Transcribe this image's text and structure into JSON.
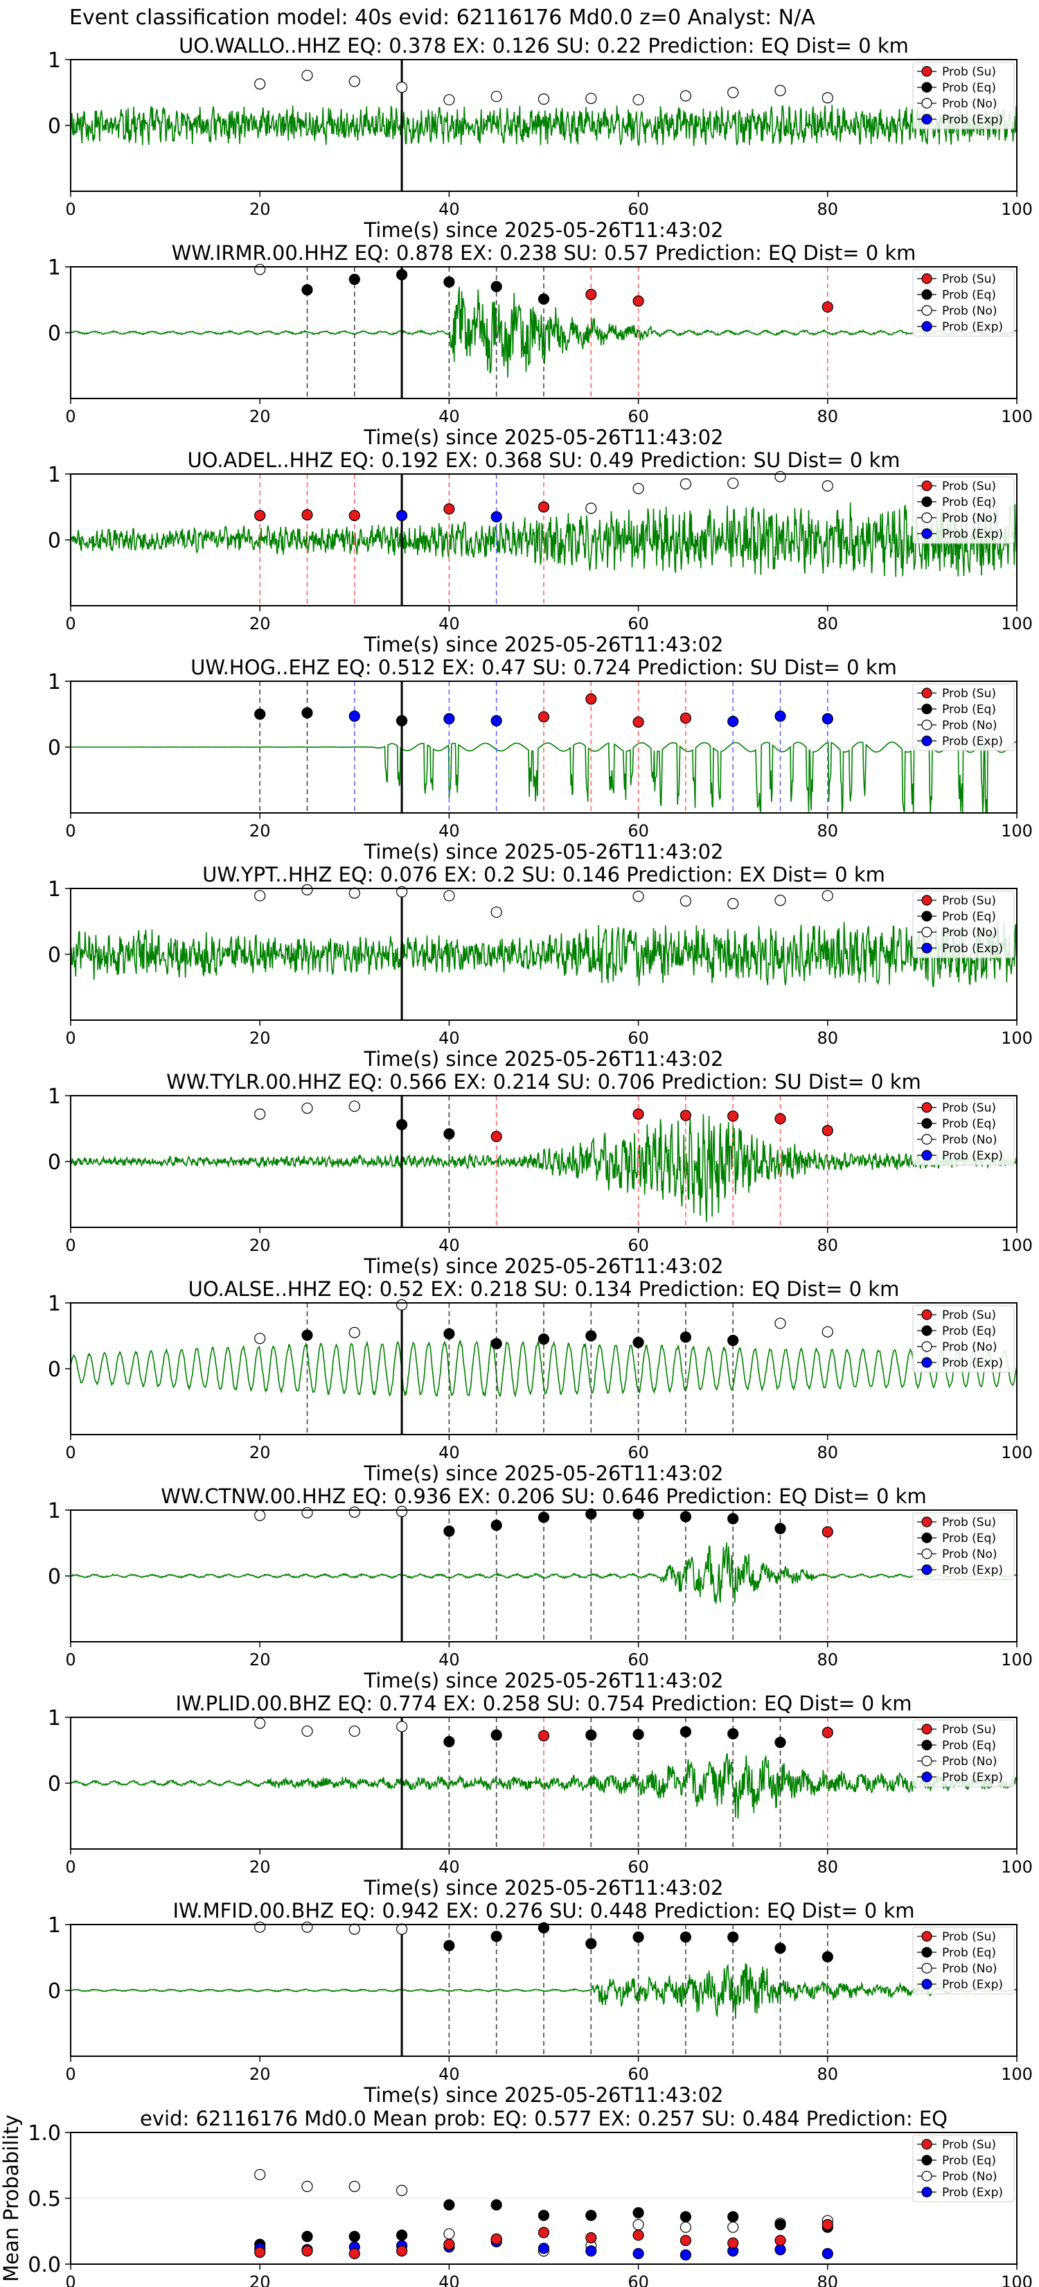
{
  "figure_title": "Event classification model: 40s evid: 62116176 Md0.0 z=0 Analyst: N/A",
  "colors": {
    "waveform": "#008000",
    "su": "#e41a1c",
    "eq": "#000000",
    "no": "#ffffff",
    "exp": "#0000ff",
    "su_line": "#ff6666",
    "eq_line": "#444444",
    "exp_line": "#6666ff",
    "origin_line": "#000000"
  },
  "legend": [
    "Prob (Su)",
    "Prob (Eq)",
    "Prob (No)",
    "Prob (Exp)"
  ],
  "x_ticks": [
    "0",
    "20",
    "40",
    "60",
    "80",
    "100"
  ],
  "x_values": [
    20,
    25,
    30,
    35,
    40,
    45,
    50,
    55,
    60,
    65,
    70,
    75,
    80
  ],
  "chart_data": [
    {
      "type": "scatter",
      "title": "UO.WALLO..HHZ   EQ: 0.378  EX: 0.126  SU: 0.22   Prediction: EQ    Dist= 0 km",
      "xlabel": "Time(s) since 2025-05-26T11:43:02",
      "xlim": [
        0,
        100
      ],
      "ylim": [
        -1,
        1
      ],
      "y_ticks": [
        "1",
        "0"
      ],
      "origin_time": 35,
      "waveform": {
        "style": "dense",
        "amp": 0.35,
        "profile": [
          [
            0,
            0.9
          ],
          [
            100,
            0.9
          ]
        ],
        "seed": 11
      },
      "top_class": [
        "No",
        "No",
        "No",
        "No",
        "No",
        "No",
        "No",
        "No",
        "No",
        "No",
        "No",
        "No",
        "No"
      ],
      "top_prob": [
        0.63,
        0.76,
        0.67,
        0.58,
        0.39,
        0.44,
        0.4,
        0.41,
        0.39,
        0.45,
        0.5,
        0.53,
        0.42
      ]
    },
    {
      "type": "scatter",
      "title": "WW.IRMR.00.HHZ   EQ: 0.878  EX: 0.238  SU: 0.57   Prediction: EQ    Dist= 0 km",
      "xlabel": "Time(s) since 2025-05-26T11:43:02",
      "xlim": [
        0,
        100
      ],
      "ylim": [
        -1,
        1
      ],
      "y_ticks": [
        "1",
        "0"
      ],
      "origin_time": 35,
      "waveform": {
        "style": "smooth",
        "amp": 0.75,
        "profile": [
          [
            0,
            0.06
          ],
          [
            40,
            0.08
          ],
          [
            40.5,
            1
          ],
          [
            48,
            0.9
          ],
          [
            52,
            0.45
          ],
          [
            58,
            0.2
          ],
          [
            65,
            0.1
          ],
          [
            100,
            0.08
          ]
        ],
        "seed": 22
      },
      "top_class": [
        "No",
        "Eq",
        "Eq",
        "Eq",
        "Eq",
        "Eq",
        "Eq",
        "Su",
        "Su",
        null,
        null,
        null,
        "Su"
      ],
      "top_prob": [
        0.96,
        0.65,
        0.81,
        0.88,
        0.77,
        0.7,
        0.51,
        0.58,
        0.48,
        null,
        null,
        null,
        0.39
      ]
    },
    {
      "type": "scatter",
      "title": "UO.ADEL..HHZ   EQ: 0.192  EX: 0.368  SU: 0.49   Prediction: SU    Dist= 0 km",
      "xlabel": "Time(s) since 2025-05-26T11:43:02",
      "xlim": [
        0,
        100
      ],
      "ylim": [
        -1,
        1
      ],
      "y_ticks": [
        "1",
        "0"
      ],
      "origin_time": 35,
      "waveform": {
        "style": "dense",
        "amp": 0.6,
        "profile": [
          [
            0,
            0.3
          ],
          [
            30,
            0.4
          ],
          [
            45,
            0.5
          ],
          [
            52,
            0.8
          ],
          [
            70,
            0.9
          ],
          [
            90,
            1
          ],
          [
            100,
            1
          ]
        ],
        "seed": 33
      },
      "top_class": [
        "Su",
        "Su",
        "Su",
        "Exp",
        "Su",
        "Exp",
        "Su",
        "No",
        "No",
        "No",
        "No",
        "No",
        "No"
      ],
      "top_prob": [
        0.37,
        0.38,
        0.37,
        0.37,
        0.47,
        0.35,
        0.5,
        0.48,
        0.78,
        0.85,
        0.86,
        0.96,
        0.82
      ]
    },
    {
      "type": "scatter",
      "title": "UW.HOG..EHZ   EQ: 0.512  EX: 0.47  SU: 0.724   Prediction: SU    Dist= 0 km",
      "xlabel": "Time(s) since 2025-05-26T11:43:02",
      "xlim": [
        0,
        100
      ],
      "ylim": [
        -1,
        1
      ],
      "y_ticks": [
        "1",
        "0"
      ],
      "origin_time": 35,
      "waveform": {
        "style": "spiky",
        "amp": 0.9,
        "profile": [
          [
            0,
            0
          ],
          [
            32,
            0.03
          ],
          [
            34,
            0.6
          ],
          [
            100,
            0.9
          ]
        ],
        "seed": 44
      },
      "top_class": [
        "Eq",
        "Eq",
        "Exp",
        "Eq",
        "Exp",
        "Exp",
        "Su",
        "Su",
        "Su",
        "Su",
        "Exp",
        "Exp",
        "Exp"
      ],
      "top_prob": [
        0.5,
        0.52,
        0.47,
        0.4,
        0.43,
        0.4,
        0.46,
        0.73,
        0.38,
        0.44,
        0.39,
        0.47,
        0.43
      ]
    },
    {
      "type": "scatter",
      "title": "UW.YPT..HHZ   EQ: 0.076  EX: 0.2  SU: 0.146   Prediction: EX    Dist= 0 km",
      "xlabel": "Time(s) since 2025-05-26T11:43:02",
      "xlim": [
        0,
        100
      ],
      "ylim": [
        -1,
        1
      ],
      "y_ticks": [
        "1",
        "0"
      ],
      "origin_time": 35,
      "waveform": {
        "style": "dense",
        "amp": 0.55,
        "profile": [
          [
            0,
            0.8
          ],
          [
            20,
            0.6
          ],
          [
            50,
            0.5
          ],
          [
            55,
            0.9
          ],
          [
            85,
            0.9
          ],
          [
            100,
            1
          ]
        ],
        "seed": 55
      },
      "top_class": [
        "No",
        "No",
        "No",
        "No",
        "No",
        "No",
        null,
        null,
        "No",
        "No",
        "No",
        "No",
        "No"
      ],
      "top_prob": [
        0.89,
        0.98,
        0.93,
        0.95,
        0.89,
        0.64,
        null,
        null,
        0.88,
        0.81,
        0.77,
        0.82,
        0.89
      ]
    },
    {
      "type": "scatter",
      "title": "WW.TYLR.00.HHZ   EQ: 0.566  EX: 0.214  SU: 0.706   Prediction: SU    Dist= 0 km",
      "xlabel": "Time(s) since 2025-05-26T11:43:02",
      "xlim": [
        0,
        100
      ],
      "ylim": [
        -1,
        1
      ],
      "y_ticks": [
        "1",
        "0"
      ],
      "origin_time": 35,
      "waveform": {
        "style": "dense",
        "amp": 0.8,
        "profile": [
          [
            0,
            0.08
          ],
          [
            48,
            0.15
          ],
          [
            55,
            0.5
          ],
          [
            64,
            0.9
          ],
          [
            67,
            1.2
          ],
          [
            72,
            0.6
          ],
          [
            80,
            0.2
          ],
          [
            100,
            0.1
          ]
        ],
        "seed": 66
      },
      "top_class": [
        "No",
        "No",
        "No",
        "Eq",
        "Eq",
        "Su",
        null,
        null,
        "Su",
        "Su",
        "Su",
        "Su",
        "Su"
      ],
      "top_prob": [
        0.72,
        0.81,
        0.84,
        0.56,
        0.42,
        0.38,
        null,
        null,
        0.72,
        0.7,
        0.69,
        0.65,
        0.47
      ]
    },
    {
      "type": "scatter",
      "title": "UO.ALSE..HHZ   EQ: 0.52  EX: 0.218  SU: 0.134   Prediction: EQ    Dist= 0 km",
      "xlabel": "Time(s) since 2025-05-26T11:43:02",
      "xlim": [
        0,
        100
      ],
      "ylim": [
        -1,
        1
      ],
      "y_ticks": [
        "1",
        "0"
      ],
      "origin_time": 35,
      "waveform": {
        "style": "wavy",
        "amp": 0.6,
        "profile": [
          [
            0,
            0.4
          ],
          [
            15,
            0.6
          ],
          [
            30,
            0.75
          ],
          [
            45,
            0.8
          ],
          [
            70,
            0.6
          ],
          [
            100,
            0.5
          ]
        ],
        "seed": 77
      },
      "top_class": [
        "No",
        "Eq",
        "No",
        "No",
        "Eq",
        "Eq",
        "Eq",
        "Eq",
        "Eq",
        "Eq",
        "Eq",
        "No",
        "No"
      ],
      "top_prob": [
        0.46,
        0.51,
        0.55,
        0.97,
        0.53,
        0.38,
        0.45,
        0.5,
        0.4,
        0.48,
        0.43,
        0.69,
        0.56
      ]
    },
    {
      "type": "scatter",
      "title": "WW.CTNW.00.HHZ   EQ: 0.936  EX: 0.206  SU: 0.646   Prediction: EQ    Dist= 0 km",
      "xlabel": "Time(s) since 2025-05-26T11:43:02",
      "xlim": [
        0,
        100
      ],
      "ylim": [
        -1,
        1
      ],
      "y_ticks": [
        "1",
        "0"
      ],
      "origin_time": 35,
      "waveform": {
        "style": "smooth",
        "amp": 0.6,
        "profile": [
          [
            0,
            0.08
          ],
          [
            62,
            0.12
          ],
          [
            66,
            0.6
          ],
          [
            69,
            1
          ],
          [
            74,
            0.3
          ],
          [
            80,
            0.1
          ],
          [
            100,
            0.06
          ]
        ],
        "seed": 88
      },
      "top_class": [
        "No",
        "No",
        "No",
        "No",
        "Eq",
        "Eq",
        "Eq",
        "Eq",
        "Eq",
        "Eq",
        "Eq",
        "Eq",
        "Su"
      ],
      "top_prob": [
        0.92,
        0.96,
        0.97,
        0.98,
        0.68,
        0.77,
        0.89,
        0.94,
        0.94,
        0.9,
        0.87,
        0.72,
        0.67
      ]
    },
    {
      "type": "scatter",
      "title": "IW.PLID.00.BHZ   EQ: 0.774  EX: 0.258  SU: 0.754   Prediction: EQ    Dist= 0 km",
      "xlabel": "Time(s) since 2025-05-26T11:43:02",
      "xlim": [
        0,
        100
      ],
      "ylim": [
        -1,
        1
      ],
      "y_ticks": [
        "1",
        "0"
      ],
      "origin_time": 35,
      "waveform": {
        "style": "smooth",
        "amp": 0.6,
        "profile": [
          [
            0,
            0.12
          ],
          [
            55,
            0.2
          ],
          [
            62,
            0.4
          ],
          [
            71,
            1
          ],
          [
            76,
            0.5
          ],
          [
            82,
            0.3
          ],
          [
            100,
            0.15
          ]
        ],
        "seed": 99
      },
      "top_class": [
        "No",
        "No",
        "No",
        "No",
        "Eq",
        "Eq",
        "Su",
        "Eq",
        "Eq",
        "Eq",
        "Eq",
        "Eq",
        "Su"
      ],
      "top_prob": [
        0.91,
        0.79,
        0.79,
        0.86,
        0.63,
        0.73,
        0.72,
        0.73,
        0.74,
        0.78,
        0.75,
        0.62,
        0.77
      ]
    },
    {
      "type": "scatter",
      "title": "IW.MFID.00.BHZ   EQ: 0.942  EX: 0.276  SU: 0.448   Prediction: EQ    Dist= 0 km",
      "xlabel": "Time(s) since 2025-05-26T11:43:02",
      "xlim": [
        0,
        100
      ],
      "ylim": [
        -1,
        1
      ],
      "y_ticks": [
        "1",
        "0"
      ],
      "origin_time": 35,
      "waveform": {
        "style": "smooth",
        "amp": 0.55,
        "profile": [
          [
            0,
            0.06
          ],
          [
            55,
            0.07
          ],
          [
            56,
            0.5
          ],
          [
            62,
            0.4
          ],
          [
            68,
            0.8
          ],
          [
            72,
            1
          ],
          [
            76,
            0.3
          ],
          [
            100,
            0.06
          ]
        ],
        "seed": 123
      },
      "top_class": [
        "No",
        "No",
        "No",
        "No",
        "Eq",
        "Eq",
        "Eq",
        "Eq",
        "Eq",
        "Eq",
        "Eq",
        "Eq",
        "Eq"
      ],
      "top_prob": [
        0.96,
        0.96,
        0.93,
        0.93,
        0.68,
        0.82,
        0.95,
        0.71,
        0.81,
        0.81,
        0.81,
        0.64,
        0.51
      ]
    },
    {
      "type": "scatter",
      "title": "evid: 62116176  Md0.0   Mean prob:   EQ: 0.577  EX: 0.257  SU: 0.484   Prediction: EQ",
      "ylabel": "Mean Probability",
      "xlim": [
        0,
        100
      ],
      "ylim": [
        0,
        1
      ],
      "y_ticks": [
        "1.0",
        "0.5",
        "0.0"
      ],
      "series": [
        {
          "name": "Prob (Su)",
          "values": [
            0.09,
            0.1,
            0.08,
            0.1,
            0.15,
            0.19,
            0.24,
            0.2,
            0.22,
            0.18,
            0.16,
            0.18,
            0.3
          ]
        },
        {
          "name": "Prob (Eq)",
          "values": [
            0.15,
            0.21,
            0.21,
            0.22,
            0.45,
            0.45,
            0.37,
            0.37,
            0.39,
            0.36,
            0.36,
            0.3,
            0.28
          ]
        },
        {
          "name": "Prob (No)",
          "values": [
            0.68,
            0.59,
            0.59,
            0.56,
            0.23,
            0.19,
            0.1,
            0.14,
            0.3,
            0.28,
            0.28,
            0.31,
            0.33
          ]
        },
        {
          "name": "Prob (Exp)",
          "values": [
            0.12,
            0.11,
            0.13,
            0.14,
            0.13,
            0.17,
            0.12,
            0.1,
            0.08,
            0.07,
            0.1,
            0.11,
            0.08
          ]
        }
      ]
    }
  ]
}
